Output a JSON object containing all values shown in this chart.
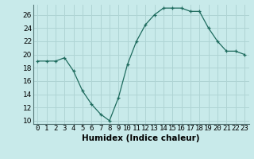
{
  "x": [
    0,
    1,
    2,
    3,
    4,
    5,
    6,
    7,
    8,
    9,
    10,
    11,
    12,
    13,
    14,
    15,
    16,
    17,
    18,
    19,
    20,
    21,
    22,
    23
  ],
  "y": [
    19,
    19,
    19,
    19.5,
    17.5,
    14.5,
    12.5,
    11,
    10,
    13.5,
    18.5,
    22,
    24.5,
    26,
    27,
    27,
    27,
    26.5,
    26.5,
    24,
    22,
    20.5,
    20.5,
    20
  ],
  "line_color": "#1e6b5e",
  "marker": "+",
  "bg_color": "#c8eaea",
  "grid_color": "#afd4d4",
  "xlabel": "Humidex (Indice chaleur)",
  "ylim": [
    9.5,
    27.5
  ],
  "xlim": [
    -0.5,
    23.5
  ],
  "yticks": [
    10,
    12,
    14,
    16,
    18,
    20,
    22,
    24,
    26
  ],
  "xtick_labels": [
    "0",
    "1",
    "2",
    "3",
    "4",
    "5",
    "6",
    "7",
    "8",
    "9",
    "10",
    "11",
    "12",
    "13",
    "14",
    "15",
    "16",
    "17",
    "18",
    "19",
    "20",
    "21",
    "22",
    "23"
  ],
  "xlabel_fontsize": 7.5,
  "tick_fontsize": 6.5
}
